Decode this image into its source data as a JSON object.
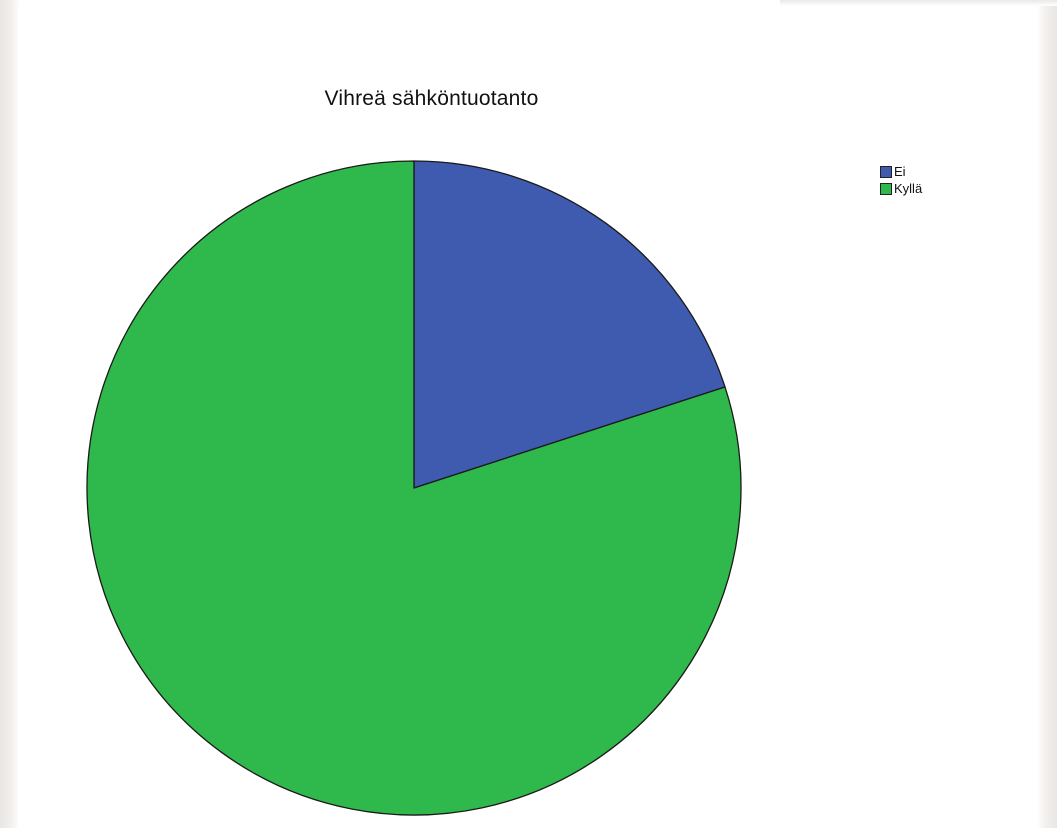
{
  "chart_data": {
    "type": "pie",
    "title": "Vihreä sähköntuotanto",
    "categories": [
      "Ei",
      "Kyllä"
    ],
    "values": [
      20,
      80
    ],
    "colors": [
      "#3f5baf",
      "#2fb84b"
    ],
    "start_angle_deg": 0,
    "direction": "clockwise",
    "legend_position": "top-right",
    "outline_color": "#1a1a1a"
  }
}
